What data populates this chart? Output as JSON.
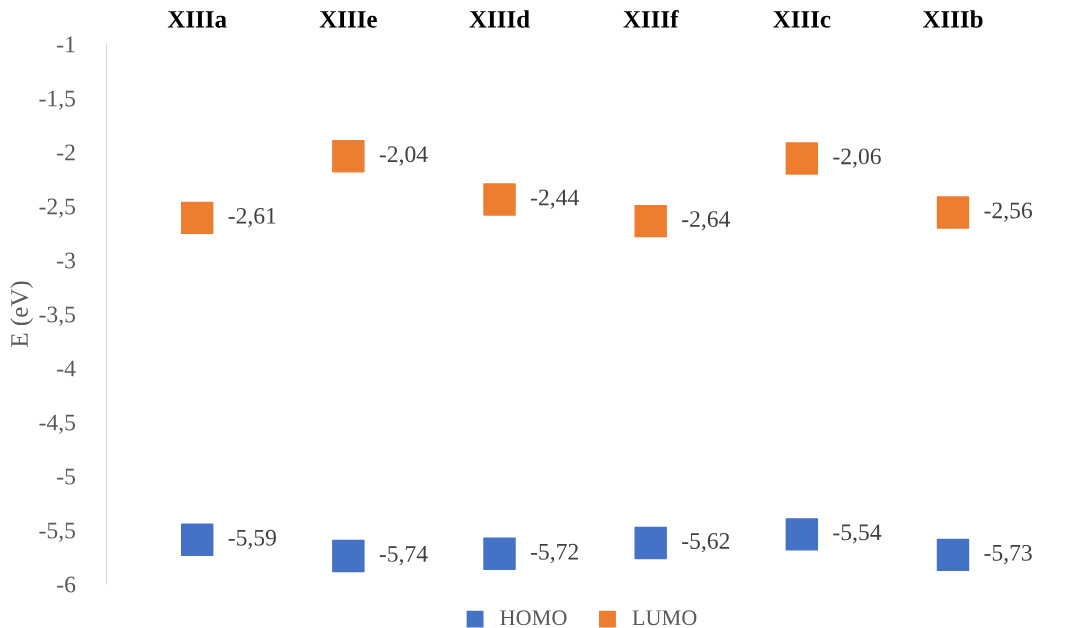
{
  "chart_data": {
    "type": "scatter",
    "ylabel": "E (eV)",
    "categories": [
      "XIIIa",
      "XIIIe",
      "XIIId",
      "XIIIf",
      "XIIIc",
      "XIIIb"
    ],
    "series": [
      {
        "name": "HOMO",
        "color": "#4472c4",
        "values": [
          -5.59,
          -5.74,
          -5.72,
          -5.62,
          -5.54,
          -5.73
        ],
        "value_labels": [
          "-5,59",
          "-5,74",
          "-5,72",
          "-5,62",
          "-5,54",
          "-5,73"
        ]
      },
      {
        "name": "LUMO",
        "color": "#ed7d31",
        "values": [
          -2.61,
          -2.04,
          -2.44,
          -2.64,
          -2.06,
          -2.56
        ],
        "value_labels": [
          "-2,61",
          "-2,04",
          "-2,44",
          "-2,64",
          "-2,06",
          "-2,56"
        ]
      }
    ],
    "ylim": [
      -6,
      -1
    ],
    "yticks": [
      -1,
      {
        "value": -1.5,
        "label": "-1,5"
      },
      -2,
      {
        "value": -2.5,
        "label": "-2,5"
      },
      -3,
      {
        "value": -3.5,
        "label": "-3,5"
      },
      -4,
      {
        "value": -4.5,
        "label": "-4,5"
      },
      -5,
      {
        "value": -5.5,
        "label": "-5,5"
      },
      -6
    ],
    "marker": "square",
    "legend": "bottom",
    "grid": false
  }
}
